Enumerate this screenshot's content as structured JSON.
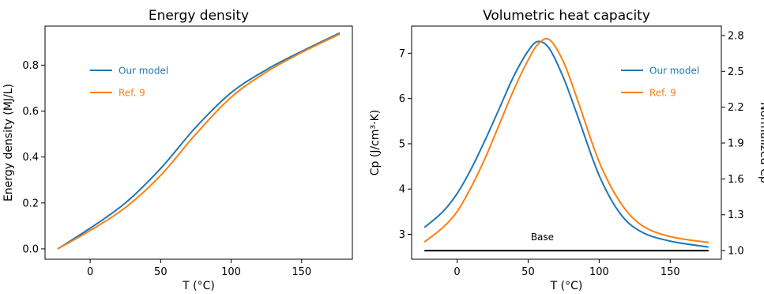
{
  "chart_data": [
    {
      "type": "line",
      "title": "Energy density",
      "xlabel": "T (°C)",
      "ylabel": "Energy density (MJ/L)",
      "xlim": [
        -32,
        186
      ],
      "ylim": [
        -0.045,
        0.97
      ],
      "xticks": [
        0,
        50,
        100,
        150
      ],
      "yticks": [
        0.0,
        0.2,
        0.4,
        0.6,
        0.8
      ],
      "ytick_labels": [
        "0.0",
        "0.2",
        "0.4",
        "0.6",
        "0.8"
      ],
      "grid": false,
      "legend": "upper-left",
      "x": [
        -23,
        0,
        25,
        50,
        75,
        100,
        125,
        150,
        177
      ],
      "series": [
        {
          "name": "Our model",
          "color": "#1f77b4",
          "values": [
            0.0,
            0.09,
            0.2,
            0.35,
            0.53,
            0.68,
            0.78,
            0.86,
            0.94
          ]
        },
        {
          "name": "Ref. 9",
          "color": "#ff7f0e",
          "values": [
            0.0,
            0.08,
            0.18,
            0.32,
            0.5,
            0.66,
            0.77,
            0.855,
            0.935
          ]
        }
      ]
    },
    {
      "type": "line",
      "title": "Volumetric heat capacity",
      "xlabel": "T (°C)",
      "ylabel": "Cp (J/cm³·K)",
      "ylabel_right": "Normalized Cp",
      "xlim": [
        -32,
        186
      ],
      "ylim": [
        2.45,
        7.6
      ],
      "xticks": [
        0,
        50,
        100,
        150
      ],
      "yticks": [
        3,
        4,
        5,
        6,
        7
      ],
      "yticks_right": [
        1.0,
        1.3,
        1.6,
        1.9,
        2.2,
        2.5,
        2.8
      ],
      "yticks_right_labels": [
        "1.0",
        "1.3",
        "1.6",
        "1.9",
        "2.2",
        "2.5",
        "2.8"
      ],
      "right_axis_scale": 2.64,
      "grid": false,
      "legend": "upper-right",
      "annotation": "Base",
      "baseline": {
        "y": 2.64,
        "color": "#000000"
      },
      "x": [
        -23,
        -10,
        0,
        10,
        20,
        30,
        40,
        50,
        57,
        65,
        75,
        85,
        100,
        115,
        130,
        150,
        177
      ],
      "series": [
        {
          "name": "Our model",
          "color": "#1f77b4",
          "values": [
            3.15,
            3.5,
            3.9,
            4.45,
            5.1,
            5.8,
            6.5,
            7.05,
            7.26,
            7.1,
            6.45,
            5.6,
            4.3,
            3.45,
            3.05,
            2.85,
            2.72
          ]
        },
        {
          "name": "Ref. 9",
          "color": "#ff7f0e",
          "values": [
            2.83,
            3.15,
            3.5,
            4.05,
            4.7,
            5.45,
            6.2,
            6.85,
            7.2,
            7.3,
            6.8,
            5.95,
            4.6,
            3.7,
            3.2,
            2.95,
            2.82
          ]
        }
      ]
    }
  ]
}
